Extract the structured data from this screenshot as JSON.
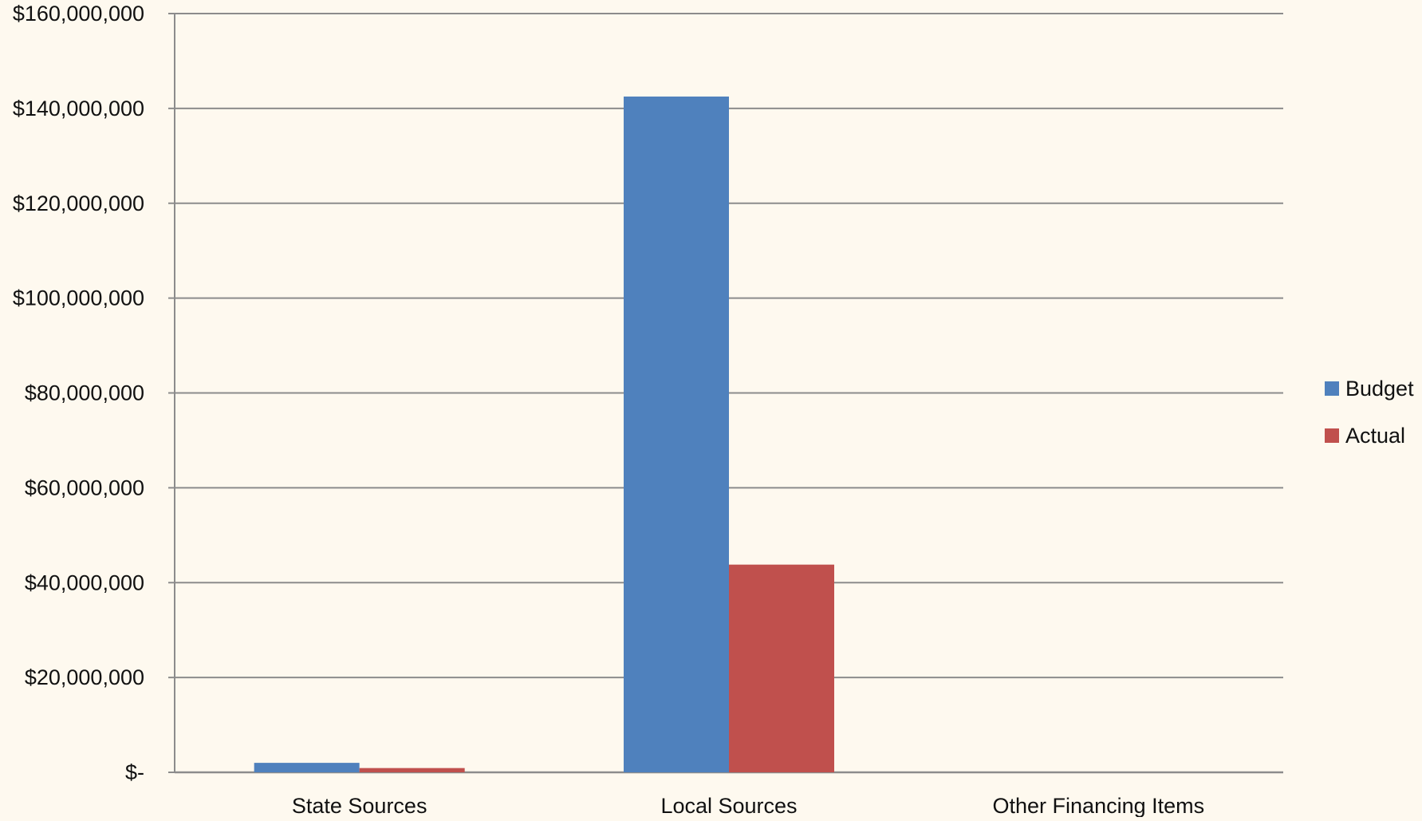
{
  "chart_data": {
    "type": "bar",
    "categories": [
      "State Sources",
      "Local Sources",
      "Other Financing Items"
    ],
    "series": [
      {
        "name": "Budget",
        "color": "#4f81bd",
        "values": [
          2000000,
          142500000,
          0
        ]
      },
      {
        "name": "Actual",
        "color": "#c0504d",
        "values": [
          900000,
          43800000,
          0
        ]
      }
    ],
    "ylim": [
      0,
      160000000
    ],
    "yticks": [
      0,
      20000000,
      40000000,
      60000000,
      80000000,
      100000000,
      120000000,
      140000000,
      160000000
    ],
    "ytick_labels": [
      "$-",
      "$20,000,000",
      "$40,000,000",
      "$60,000,000",
      "$80,000,000",
      "$100,000,000",
      "$120,000,000",
      "$140,000,000",
      "$160,000,000"
    ],
    "title": "",
    "xlabel": "",
    "ylabel": "",
    "grid": true,
    "legend_position": "right",
    "background_color": "#fef9ef",
    "gridline_color": "#8c8c8c"
  }
}
